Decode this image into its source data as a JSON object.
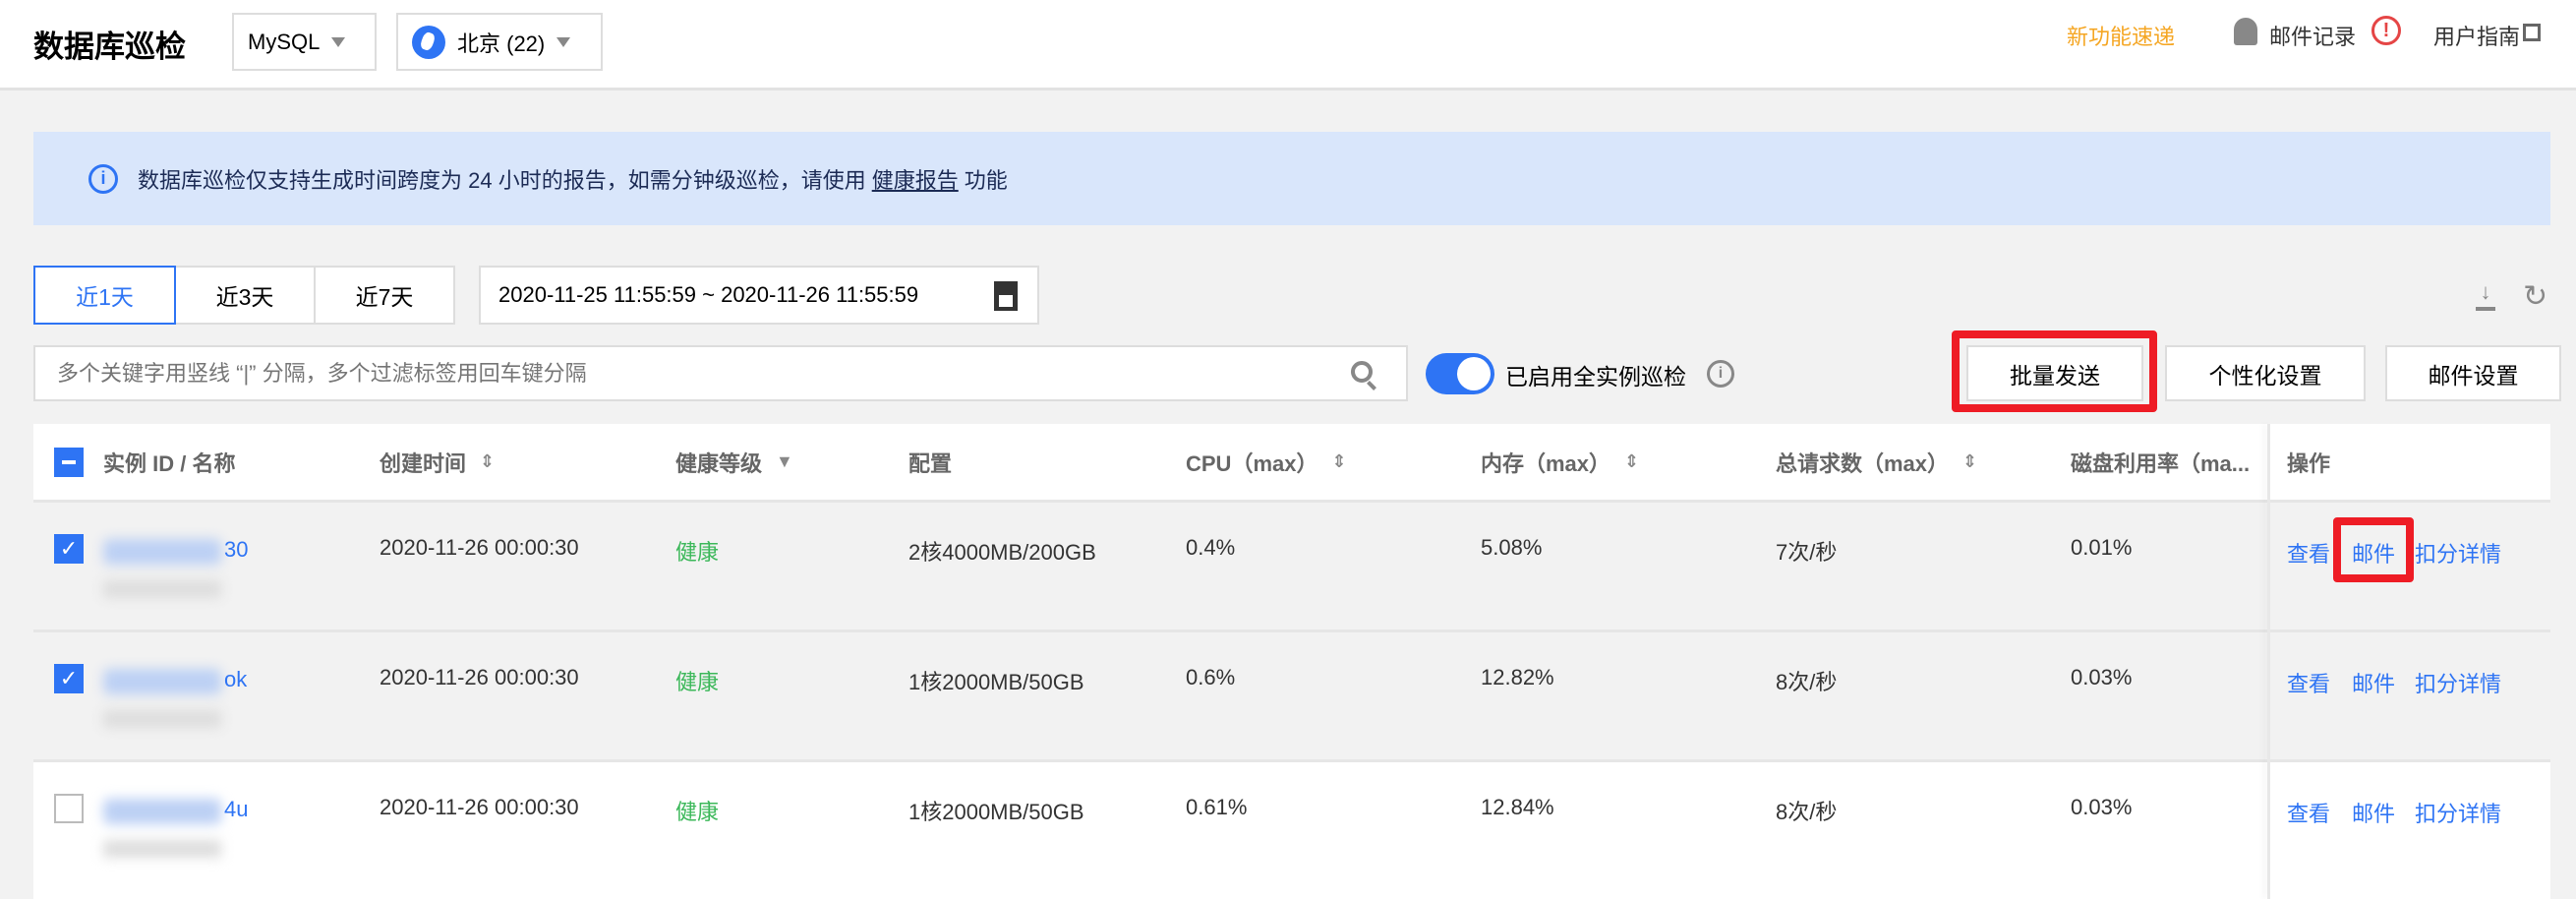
{
  "header": {
    "title": "数据库巡检",
    "db_type": "MySQL",
    "region": "北京 (22)",
    "whats_new": "新功能速递",
    "mail_log": "邮件记录",
    "user_guide": "用户指南",
    "colors": {
      "accent": "#2e74f4",
      "whats_new": "#f5a623",
      "alert": "#e54545"
    }
  },
  "banner": {
    "text_before": "数据库巡检仅支持生成时间跨度为 24 小时的报告，如需分钟级巡检，请使用",
    "link": "健康报告",
    "text_after": "功能"
  },
  "time_tabs": [
    {
      "label": "近1天",
      "active": true
    },
    {
      "label": "近3天",
      "active": false
    },
    {
      "label": "近7天",
      "active": false
    }
  ],
  "date_range": "2020-11-25 11:55:59 ~ 2020-11-26 11:55:59",
  "search": {
    "placeholder": "多个关键字用竖线 “|” 分隔，多个过滤标签用回车键分隔",
    "value": ""
  },
  "toggle": {
    "label": "已启用全实例巡检",
    "on": true
  },
  "buttons": {
    "batch_send": "批量发送",
    "personalize": "个性化设置",
    "mail_settings": "邮件设置"
  },
  "table": {
    "columns": [
      "实例 ID / 名称",
      "创建时间",
      "健康等级",
      "配置",
      "CPU（max）",
      "内存（max）",
      "总请求数（max）",
      "磁盘利用率（ma...",
      "操作"
    ],
    "rows": [
      {
        "selected": true,
        "id_suffix": "30",
        "created": "2020-11-26 00:00:30",
        "health": "健康",
        "config": "2核4000MB/200GB",
        "cpu": "0.4%",
        "mem": "5.08%",
        "req": "7次/秒",
        "disk": "0.01%"
      },
      {
        "selected": true,
        "id_suffix": "ok",
        "created": "2020-11-26 00:00:30",
        "health": "健康",
        "config": "1核2000MB/50GB",
        "cpu": "0.6%",
        "mem": "12.82%",
        "req": "8次/秒",
        "disk": "0.03%"
      },
      {
        "selected": false,
        "id_suffix": "4u",
        "created": "2020-11-26 00:00:30",
        "health": "健康",
        "config": "1核2000MB/50GB",
        "cpu": "0.61%",
        "mem": "12.84%",
        "req": "8次/秒",
        "disk": "0.03%"
      }
    ],
    "actions": {
      "view": "查看",
      "mail": "邮件",
      "deduction": "扣分详情"
    }
  }
}
